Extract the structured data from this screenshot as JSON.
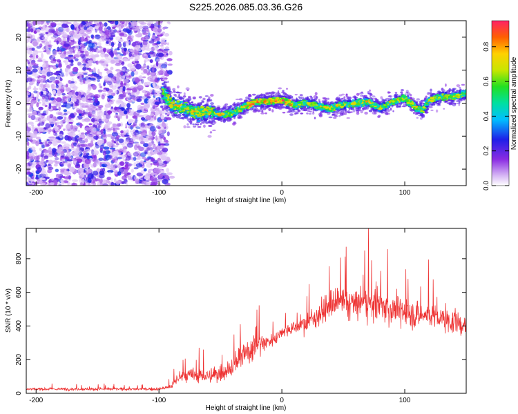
{
  "title": "S225.2026.085.03.36.G26",
  "chart_data": [
    {
      "type": "heatmap",
      "xlabel": "Height of straight line (km)",
      "ylabel": "Frequency (Hz)",
      "xlim": [
        -208,
        150
      ],
      "ylim": [
        -25,
        25
      ],
      "x_ticks": [
        -200,
        -100,
        0,
        100
      ],
      "y_ticks": [
        -20,
        -10,
        0,
        10,
        20
      ],
      "colorbar": {
        "label": "Normalized spectral amplitude",
        "range": [
          0,
          0.95
        ],
        "ticks": [
          0.0,
          0.2,
          0.4,
          0.6,
          0.8
        ]
      },
      "ridge": {
        "x": [
          -95,
          -90,
          -80,
          -70,
          -60,
          -50,
          -40,
          -30,
          -20,
          -10,
          0,
          10,
          20,
          30,
          40,
          50,
          60,
          70,
          80,
          90,
          100,
          110,
          115,
          120,
          130,
          140,
          150
        ],
        "y": [
          3,
          -0.5,
          -1.5,
          -3,
          -2.5,
          -3.5,
          -3,
          -1,
          0.5,
          0.5,
          1,
          -0.5,
          0,
          -1,
          -1.5,
          -0.5,
          0,
          0.5,
          -1.5,
          0.5,
          1.5,
          -1.5,
          -2,
          1,
          2,
          2,
          3
        ]
      }
    },
    {
      "type": "line",
      "xlabel": "Height of straight line (km)",
      "ylabel": "SNR (10 * v/v)",
      "xlim": [
        -208,
        150
      ],
      "ylim": [
        0,
        980
      ],
      "x_ticks": [
        -200,
        -100,
        0,
        100
      ],
      "y_ticks": [
        0,
        200,
        400,
        600,
        800
      ],
      "color": "#ee3333",
      "envelope": {
        "x": [
          -208,
          -150,
          -100,
          -90,
          -85,
          -80,
          -70,
          -60,
          -50,
          -45,
          -40,
          -35,
          -30,
          -25,
          -20,
          -15,
          -10,
          -5,
          0,
          10,
          20,
          30,
          40,
          50,
          60,
          70,
          80,
          90,
          100,
          110,
          120,
          130,
          140,
          150
        ],
        "mean": [
          25,
          25,
          25,
          40,
          90,
          100,
          110,
          100,
          120,
          140,
          160,
          200,
          230,
          270,
          300,
          300,
          310,
          330,
          370,
          390,
          420,
          470,
          520,
          540,
          530,
          540,
          520,
          500,
          480,
          460,
          470,
          440,
          420,
          400
        ],
        "spread": [
          15,
          15,
          15,
          30,
          70,
          80,
          90,
          80,
          100,
          110,
          120,
          140,
          160,
          170,
          160,
          120,
          80,
          70,
          60,
          80,
          110,
          130,
          160,
          180,
          190,
          200,
          180,
          170,
          160,
          150,
          150,
          140,
          130,
          120
        ]
      }
    }
  ]
}
